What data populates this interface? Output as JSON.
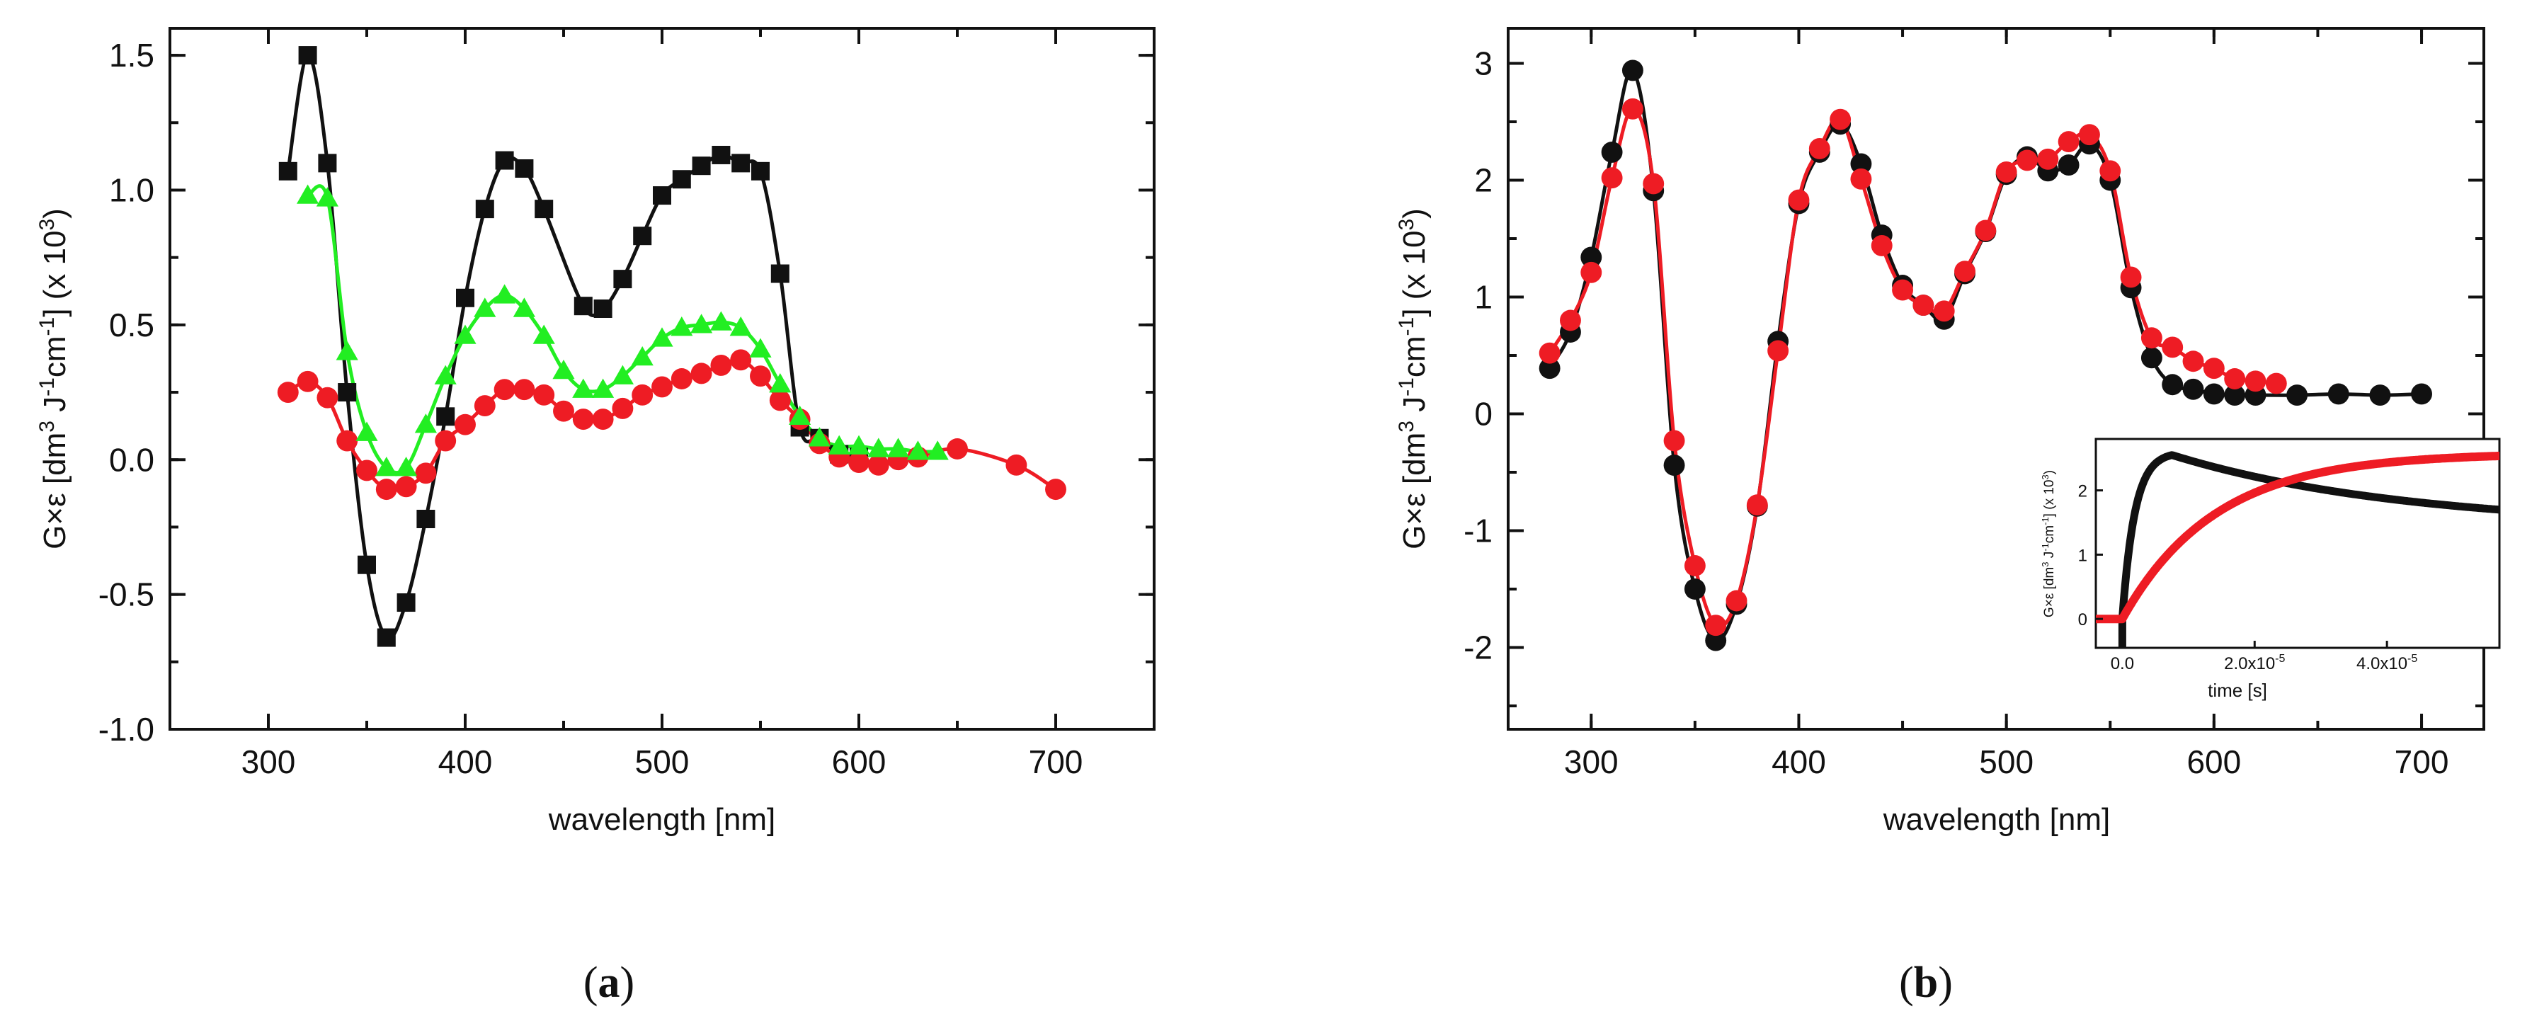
{
  "chart_data": [
    {
      "panel_label": {
        "open": "(",
        "letter": "a",
        "close": ")"
      },
      "type": "scatter",
      "title": "",
      "xlabel": "wavelength [nm]",
      "ylabel_parts": {
        "a": "G×ε [dm",
        "b": "3",
        "c": " J",
        "d": "-1",
        "e": "cm",
        "f": "-1",
        "g": "] (x 10",
        "h": "3",
        "i": ")"
      },
      "xlim": [
        250,
        750
      ],
      "ylim": [
        -1.0,
        1.6
      ],
      "xticks": [
        300,
        400,
        500,
        600,
        700
      ],
      "xtick_labels": [
        "300",
        "400",
        "500",
        "600",
        "700"
      ],
      "yticks": [
        -1.0,
        -0.5,
        0.0,
        0.5,
        1.0,
        1.5
      ],
      "ytick_labels": [
        "-1.0",
        "-0.5",
        "0.0",
        "0.5",
        "1.0",
        "1.5"
      ],
      "series": [
        {
          "name": "black squares",
          "marker": "square",
          "color": "#111111",
          "x": [
            310,
            320,
            330,
            340,
            350,
            360,
            370,
            380,
            390,
            400,
            410,
            420,
            430,
            440,
            460,
            470,
            480,
            490,
            500,
            510,
            520,
            530,
            540,
            550,
            560,
            570,
            580,
            590,
            600
          ],
          "y": [
            1.07,
            1.5,
            1.1,
            0.25,
            -0.39,
            -0.66,
            -0.53,
            -0.22,
            0.16,
            0.6,
            0.93,
            1.11,
            1.08,
            0.93,
            0.57,
            0.56,
            0.67,
            0.83,
            0.98,
            1.04,
            1.09,
            1.13,
            1.1,
            1.07,
            0.69,
            0.12,
            0.08,
            0.02,
            0.01
          ]
        },
        {
          "name": "red circles",
          "marker": "circle",
          "color": "#ee1c24",
          "x": [
            310,
            320,
            330,
            340,
            350,
            360,
            370,
            380,
            390,
            400,
            410,
            420,
            430,
            440,
            450,
            460,
            470,
            480,
            490,
            500,
            510,
            520,
            530,
            540,
            550,
            560,
            570,
            580,
            590,
            600,
            610,
            620,
            630,
            650,
            680,
            700
          ],
          "y": [
            0.25,
            0.29,
            0.23,
            0.07,
            -0.04,
            -0.11,
            -0.1,
            -0.05,
            0.07,
            0.13,
            0.2,
            0.26,
            0.26,
            0.24,
            0.18,
            0.15,
            0.15,
            0.19,
            0.24,
            0.27,
            0.3,
            0.32,
            0.35,
            0.37,
            0.31,
            0.22,
            0.15,
            0.06,
            0.01,
            -0.01,
            -0.02,
            0.0,
            0.01,
            0.04,
            -0.02,
            -0.11
          ]
        },
        {
          "name": "green triangles",
          "marker": "triangle",
          "color": "#22ee22",
          "x": [
            320,
            330,
            340,
            350,
            360,
            370,
            380,
            390,
            400,
            410,
            420,
            430,
            440,
            450,
            460,
            470,
            480,
            490,
            500,
            510,
            520,
            530,
            540,
            550,
            560,
            570,
            580,
            590,
            600,
            610,
            620,
            630,
            640
          ],
          "y": [
            0.98,
            0.97,
            0.4,
            0.1,
            -0.03,
            -0.03,
            0.13,
            0.31,
            0.46,
            0.56,
            0.61,
            0.56,
            0.46,
            0.33,
            0.26,
            0.26,
            0.31,
            0.38,
            0.45,
            0.49,
            0.5,
            0.51,
            0.49,
            0.41,
            0.28,
            0.16,
            0.08,
            0.05,
            0.05,
            0.04,
            0.04,
            0.03,
            0.03
          ]
        }
      ]
    },
    {
      "panel_label": {
        "open": "(",
        "letter": "b",
        "close": ")"
      },
      "type": "scatter",
      "title": "",
      "xlabel": "wavelength [nm]",
      "ylabel_parts": {
        "a": "G×ε [dm",
        "b": "3",
        "c": " J",
        "d": "-1",
        "e": "cm",
        "f": "-1",
        "g": "] (x 10",
        "h": "3",
        "i": ")"
      },
      "xlim": [
        260,
        730
      ],
      "ylim": [
        -2.7,
        3.3
      ],
      "xticks": [
        300,
        400,
        500,
        600,
        700
      ],
      "xtick_labels": [
        "300",
        "400",
        "500",
        "600",
        "700"
      ],
      "yticks": [
        -2,
        -1,
        0,
        1,
        2,
        3
      ],
      "ytick_labels": [
        "-2",
        "-1",
        "0",
        "1",
        "2",
        "3"
      ],
      "series": [
        {
          "name": "black circles",
          "marker": "circle",
          "color": "#111111",
          "x": [
            280,
            290,
            300,
            310,
            320,
            330,
            340,
            350,
            360,
            370,
            380,
            390,
            400,
            410,
            420,
            430,
            440,
            450,
            460,
            470,
            480,
            490,
            500,
            510,
            520,
            530,
            540,
            550,
            560,
            570,
            580,
            590,
            600,
            610,
            620,
            640,
            660,
            680,
            700
          ],
          "y": [
            0.39,
            0.7,
            1.34,
            2.24,
            2.94,
            1.91,
            -0.44,
            -1.5,
            -1.94,
            -1.63,
            -0.79,
            0.62,
            1.8,
            2.24,
            2.48,
            2.14,
            1.53,
            1.1,
            0.93,
            0.81,
            1.2,
            1.56,
            2.05,
            2.2,
            2.08,
            2.13,
            2.31,
            2.0,
            1.08,
            0.48,
            0.25,
            0.21,
            0.17,
            0.16,
            0.16,
            0.16,
            0.17,
            0.16,
            0.17
          ]
        },
        {
          "name": "red circles",
          "marker": "circle",
          "color": "#ee1c24",
          "x": [
            280,
            290,
            300,
            310,
            320,
            330,
            340,
            350,
            360,
            370,
            380,
            390,
            400,
            410,
            420,
            430,
            440,
            450,
            460,
            470,
            480,
            490,
            500,
            510,
            520,
            530,
            540,
            550,
            560,
            570,
            580,
            590,
            600,
            610,
            620,
            630
          ],
          "y": [
            0.52,
            0.8,
            1.21,
            2.02,
            2.61,
            1.97,
            -0.23,
            -1.3,
            -1.81,
            -1.6,
            -0.78,
            0.54,
            1.83,
            2.27,
            2.52,
            2.01,
            1.44,
            1.06,
            0.93,
            0.88,
            1.22,
            1.57,
            2.07,
            2.17,
            2.18,
            2.33,
            2.39,
            2.08,
            1.17,
            0.65,
            0.57,
            0.45,
            0.39,
            0.3,
            0.28,
            0.26
          ]
        }
      ],
      "inset": {
        "type": "scatter",
        "xlabel": "time [s]",
        "ylabel_parts": {
          "a": "G×ε [dm",
          "b": "3",
          "c": " J",
          "d": "-1",
          "e": "cm",
          "f": "-1",
          "g": "] (x 10",
          "h": "3",
          "i": ")"
        },
        "xlim": [
          -4e-06,
          5.7e-05
        ],
        "ylim": [
          -0.45,
          2.8
        ],
        "xticks": [
          0,
          2e-05,
          4e-05
        ],
        "xtick_labels": [
          {
            "m": "0.0",
            "e": ""
          },
          {
            "m": "2.0x10",
            "e": "-5"
          },
          {
            "m": "4.0x10",
            "e": "-5"
          }
        ],
        "yticks": [
          0,
          1,
          2
        ],
        "ytick_labels": [
          "0",
          "1",
          "2"
        ],
        "series": [
          {
            "name": "black trace",
            "color": "#111111",
            "kind": "rise-decay",
            "t_start": 0,
            "peak_time": 7.5e-06,
            "peak_value": 2.55,
            "end_value": 1.7,
            "t_end": 5.7e-05
          },
          {
            "name": "red trace",
            "color": "#ee1c24",
            "kind": "rise",
            "t_start": 0,
            "end_value": 2.58,
            "time_constant": 1.4e-05,
            "t_end": 5.7e-05
          }
        ]
      }
    }
  ]
}
